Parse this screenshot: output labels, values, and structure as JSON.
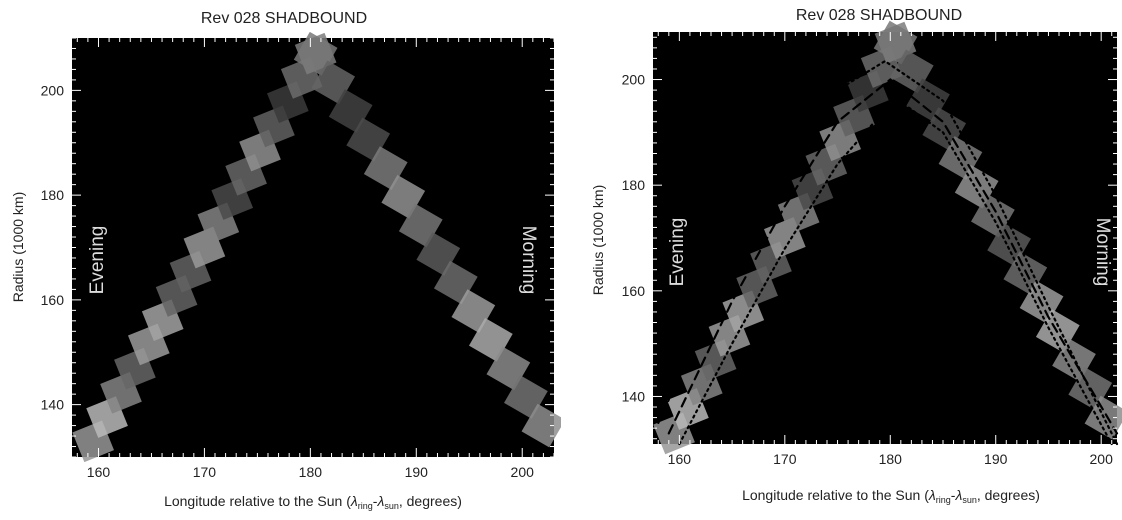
{
  "figure": {
    "panels": [
      {
        "id": "left",
        "title": "Rev 028 SHADBOUND",
        "xlabel_main": "Longitude relative to the Sun (",
        "xlabel_lambda": "λ",
        "xlabel_sub_ring": "ring",
        "xlabel_dash": "-",
        "xlabel_sub_sun": "sun",
        "xlabel_tail": ", degrees)",
        "ylabel": "Radius (1000 km)",
        "annotation_left": "Evening",
        "annotation_right": "Morning"
      },
      {
        "id": "right",
        "title": "Rev 028 SHADBOUND",
        "xlabel_main": "Longitude relative to the Sun (",
        "xlabel_lambda": "λ",
        "xlabel_sub_ring": "ring",
        "xlabel_dash": "-",
        "xlabel_sub_sun": "sun",
        "xlabel_tail": ", degrees)",
        "ylabel": "Radius (1000 km)",
        "annotation_left": "Evening",
        "annotation_right": "Morning"
      }
    ]
  },
  "chart_data": [
    {
      "type": "heatmap",
      "title": "Rev 028 SHADBOUND",
      "xlabel": "Longitude relative to the Sun (λring-λsun, degrees)",
      "ylabel": "Radius (1000 km)",
      "xlim": [
        157.5,
        203
      ],
      "ylim": [
        130,
        210
      ],
      "xticks": [
        160,
        170,
        180,
        190,
        200
      ],
      "yticks": [
        140,
        160,
        180,
        200
      ],
      "background": "#000000",
      "ridge_peak": {
        "x": 180.5,
        "y": 207
      },
      "ridge_left_end": {
        "x": 159.5,
        "y": 133
      },
      "ridge_right_end": {
        "x": 202,
        "y": 136
      },
      "annotations": [
        "Evening",
        "Morning"
      ],
      "curves": []
    },
    {
      "type": "heatmap",
      "title": "Rev 028 SHADBOUND",
      "xlabel": "Longitude relative to the Sun (λring-λsun, degrees)",
      "ylabel": "Radius (1000 km)",
      "xlim": [
        157.5,
        201.5
      ],
      "ylim": [
        131,
        209
      ],
      "xticks": [
        160,
        170,
        180,
        190,
        200
      ],
      "yticks": [
        140,
        160,
        180,
        200
      ],
      "background": "#000000",
      "ridge_peak": {
        "x": 180.5,
        "y": 207
      },
      "ridge_left_end": {
        "x": 159.5,
        "y": 133
      },
      "ridge_right_end": {
        "x": 200.5,
        "y": 136
      },
      "annotations": [
        "Evening",
        "Morning"
      ],
      "curves": [
        {
          "style": "dotted",
          "peak_x": 179.5,
          "peak_y": 203.5,
          "points": [
            [
              158,
              135
            ],
            [
              165,
              166
            ],
            [
              170,
              184
            ],
            [
              175,
              198
            ],
            [
              179.5,
              203.5
            ],
            [
              185,
              196
            ],
            [
              190,
              178
            ],
            [
              195,
              157
            ],
            [
              201.5,
              131
            ]
          ]
        },
        {
          "style": "dashed",
          "peak_x": 180,
          "peak_y": 200,
          "points": [
            [
              159,
              133
            ],
            [
              165,
              158
            ],
            [
              170,
              176
            ],
            [
              175,
              192
            ],
            [
              180,
              200
            ],
            [
              185,
              192
            ],
            [
              190,
              175
            ],
            [
              195,
              155
            ],
            [
              201.5,
              133
            ]
          ]
        },
        {
          "style": "dotted",
          "peak_x": 180.5,
          "peak_y": 196.5,
          "points": [
            [
              160,
              131
            ],
            [
              165,
              150
            ],
            [
              170,
              168
            ],
            [
              175,
              184
            ],
            [
              180.5,
              196.5
            ],
            [
              185,
              190
            ],
            [
              190,
              173
            ],
            [
              195,
              153
            ],
            [
              201,
              131
            ]
          ]
        }
      ]
    }
  ]
}
